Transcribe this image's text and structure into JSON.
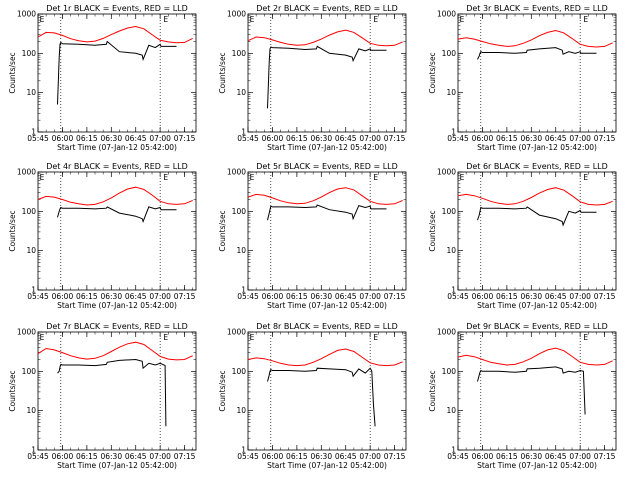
{
  "chart_data": {
    "type": "line",
    "layout": "3x3 grid",
    "y_scale": "log",
    "ylim": [
      1,
      1000
    ],
    "ylabel": "Counts/sec",
    "y_tick_labels": [
      "1",
      "10",
      "100",
      "1000"
    ],
    "x_tick_labels": [
      "05:45",
      "06:00",
      "06:15",
      "06:30",
      "06:45",
      "07:00",
      "07:15"
    ],
    "xlabel": "Start Time (07-Jan-12 05:42:00)",
    "xlim": [
      "05:45",
      "07:22"
    ],
    "vlines": [
      "05:59",
      "07:00"
    ],
    "marker_label": "E",
    "marker_positions": [
      "05:46",
      "07:02"
    ],
    "colors": {
      "events": "#000000",
      "lld": "#ff0000"
    },
    "series_legend": "BLACK = Events, RED = LLD",
    "panels": [
      {
        "title": "Det 1r BLACK = Events, RED = LLD",
        "lld": {
          "x": [
            "05:45",
            "05:50",
            "05:55",
            "06:00",
            "06:05",
            "06:10",
            "06:15",
            "06:20",
            "06:25",
            "06:30",
            "06:35",
            "06:40",
            "06:45",
            "06:50",
            "06:55",
            "07:00",
            "07:05",
            "07:10",
            "07:15",
            "07:20"
          ],
          "y": [
            260,
            340,
            330,
            285,
            235,
            210,
            195,
            205,
            240,
            300,
            370,
            440,
            480,
            420,
            300,
            215,
            195,
            185,
            190,
            240
          ]
        },
        "events": {
          "x": [
            "05:57",
            "05:58",
            "05:58.5",
            "05:59",
            "06:00",
            "06:10",
            "06:20",
            "06:27",
            "06:27.5",
            "06:35",
            "06:45",
            "06:49",
            "06:49.5",
            "06:53",
            "06:57",
            "07:00",
            "07:00.5",
            "07:10"
          ],
          "y": [
            5,
            80,
            170,
            190,
            175,
            170,
            160,
            170,
            200,
            110,
            100,
            90,
            70,
            160,
            140,
            170,
            150,
            150
          ]
        }
      },
      {
        "title": "Det 2r BLACK = Events, RED = LLD",
        "lld": {
          "x": [
            "05:45",
            "05:50",
            "05:55",
            "06:00",
            "06:05",
            "06:10",
            "06:15",
            "06:20",
            "06:25",
            "06:30",
            "06:35",
            "06:40",
            "06:45",
            "06:50",
            "06:55",
            "07:00",
            "07:05",
            "07:10",
            "07:15",
            "07:20"
          ],
          "y": [
            210,
            260,
            250,
            220,
            190,
            170,
            160,
            165,
            190,
            230,
            290,
            350,
            390,
            340,
            250,
            180,
            160,
            155,
            160,
            195
          ]
        },
        "events": {
          "x": [
            "05:57",
            "05:58",
            "05:58.5",
            "05:59",
            "06:00",
            "06:10",
            "06:20",
            "06:27",
            "06:27.5",
            "06:35",
            "06:45",
            "06:49",
            "06:49.5",
            "06:53",
            "06:57",
            "07:00",
            "07:00.5",
            "07:10"
          ],
          "y": [
            4,
            60,
            130,
            145,
            140,
            135,
            125,
            130,
            150,
            100,
            90,
            80,
            65,
            130,
            115,
            130,
            120,
            120
          ]
        }
      },
      {
        "title": "Det 3r BLACK = Events, RED = LLD",
        "lld": {
          "x": [
            "05:45",
            "05:50",
            "05:55",
            "06:00",
            "06:05",
            "06:10",
            "06:15",
            "06:20",
            "06:25",
            "06:30",
            "06:35",
            "06:40",
            "06:45",
            "06:50",
            "06:55",
            "07:00",
            "07:05",
            "07:10",
            "07:15",
            "07:20"
          ],
          "y": [
            230,
            250,
            230,
            200,
            175,
            160,
            150,
            155,
            180,
            220,
            280,
            340,
            380,
            330,
            240,
            170,
            150,
            145,
            150,
            185
          ]
        },
        "events": {
          "x": [
            "05:57",
            "05:58",
            "05:58.5",
            "05:59",
            "06:00",
            "06:10",
            "06:20",
            "06:27",
            "06:27.5",
            "06:35",
            "06:45",
            "06:49",
            "06:49.5",
            "06:53",
            "06:57",
            "07:00",
            "07:00.5",
            "07:10"
          ],
          "y": [
            70,
            85,
            100,
            110,
            105,
            105,
            100,
            105,
            120,
            130,
            140,
            120,
            95,
            110,
            100,
            110,
            100,
            100
          ]
        }
      },
      {
        "title": "Det 4r BLACK = Events, RED = LLD",
        "lld": {
          "x": [
            "05:45",
            "05:50",
            "05:55",
            "06:00",
            "06:05",
            "06:10",
            "06:15",
            "06:20",
            "06:25",
            "06:30",
            "06:35",
            "06:40",
            "06:45",
            "06:50",
            "06:55",
            "07:00",
            "07:05",
            "07:10",
            "07:15",
            "07:20"
          ],
          "y": [
            200,
            240,
            230,
            200,
            170,
            155,
            145,
            150,
            175,
            220,
            290,
            370,
            410,
            360,
            260,
            180,
            155,
            150,
            155,
            190
          ]
        },
        "events": {
          "x": [
            "05:57",
            "05:58",
            "05:58.5",
            "05:59",
            "06:00",
            "06:10",
            "06:20",
            "06:27",
            "06:27.5",
            "06:35",
            "06:45",
            "06:49",
            "06:49.5",
            "06:53",
            "06:57",
            "07:00",
            "07:00.5",
            "07:10"
          ],
          "y": [
            70,
            100,
            115,
            125,
            120,
            120,
            115,
            120,
            130,
            90,
            75,
            65,
            55,
            130,
            115,
            125,
            110,
            110
          ]
        }
      },
      {
        "title": "Det 5r BLACK = Events, RED = LLD",
        "lld": {
          "x": [
            "05:45",
            "05:50",
            "05:55",
            "06:00",
            "06:05",
            "06:10",
            "06:15",
            "06:20",
            "06:25",
            "06:30",
            "06:35",
            "06:40",
            "06:45",
            "06:50",
            "06:55",
            "07:00",
            "07:05",
            "07:10",
            "07:15",
            "07:20"
          ],
          "y": [
            230,
            270,
            255,
            220,
            185,
            165,
            155,
            160,
            185,
            230,
            300,
            370,
            400,
            350,
            250,
            180,
            155,
            150,
            155,
            190
          ]
        },
        "events": {
          "x": [
            "05:57",
            "05:58",
            "05:58.5",
            "05:59",
            "06:00",
            "06:10",
            "06:20",
            "06:27",
            "06:27.5",
            "06:35",
            "06:45",
            "06:49",
            "06:49.5",
            "06:53",
            "06:57",
            "07:00",
            "07:00.5",
            "07:10"
          ],
          "y": [
            60,
            90,
            110,
            135,
            130,
            130,
            125,
            130,
            145,
            110,
            95,
            85,
            65,
            140,
            125,
            135,
            115,
            115
          ]
        }
      },
      {
        "title": "Det 6r BLACK = Events, RED = LLD",
        "lld": {
          "x": [
            "05:45",
            "05:50",
            "05:55",
            "06:00",
            "06:05",
            "06:10",
            "06:15",
            "06:20",
            "06:25",
            "06:30",
            "06:35",
            "06:40",
            "06:45",
            "06:50",
            "06:55",
            "07:00",
            "07:05",
            "07:10",
            "07:15",
            "07:20"
          ],
          "y": [
            250,
            270,
            250,
            215,
            180,
            160,
            150,
            155,
            180,
            225,
            290,
            360,
            400,
            345,
            250,
            175,
            150,
            145,
            150,
            180
          ]
        },
        "events": {
          "x": [
            "05:57",
            "05:58",
            "05:58.5",
            "05:59",
            "06:00",
            "06:10",
            "06:20",
            "06:27",
            "06:27.5",
            "06:35",
            "06:45",
            "06:49",
            "06:49.5",
            "06:53",
            "06:57",
            "07:00",
            "07:00.5",
            "07:10"
          ],
          "y": [
            60,
            80,
            100,
            125,
            120,
            120,
            115,
            120,
            130,
            80,
            65,
            55,
            45,
            100,
            90,
            105,
            95,
            95
          ]
        }
      },
      {
        "title": "Det 7r BLACK = Events, RED = LLD",
        "lld": {
          "x": [
            "05:45",
            "05:50",
            "05:55",
            "06:00",
            "06:05",
            "06:10",
            "06:15",
            "06:20",
            "06:25",
            "06:30",
            "06:35",
            "06:40",
            "06:45",
            "06:50",
            "06:55",
            "07:00",
            "07:05",
            "07:10",
            "07:15",
            "07:20"
          ],
          "y": [
            280,
            380,
            350,
            300,
            250,
            220,
            205,
            215,
            250,
            320,
            410,
            500,
            550,
            480,
            340,
            240,
            205,
            195,
            200,
            250
          ]
        },
        "events": {
          "x": [
            "05:57",
            "05:58",
            "05:58.5",
            "05:59",
            "06:00",
            "06:10",
            "06:20",
            "06:27",
            "06:27.5",
            "06:35",
            "06:45",
            "06:49",
            "06:49.5",
            "06:53",
            "06:57",
            "07:00",
            "07:03",
            "07:03.5"
          ],
          "y": [
            90,
            100,
            130,
            150,
            145,
            145,
            140,
            150,
            170,
            190,
            200,
            180,
            120,
            160,
            145,
            160,
            140,
            4
          ]
        }
      },
      {
        "title": "Det 8r BLACK = Events, RED = LLD",
        "lld": {
          "x": [
            "05:45",
            "05:50",
            "05:55",
            "06:00",
            "06:05",
            "06:10",
            "06:15",
            "06:20",
            "06:25",
            "06:30",
            "06:35",
            "06:40",
            "06:45",
            "06:50",
            "06:55",
            "07:00",
            "07:05",
            "07:10",
            "07:15",
            "07:20"
          ],
          "y": [
            200,
            220,
            210,
            185,
            160,
            145,
            140,
            145,
            170,
            210,
            270,
            340,
            370,
            320,
            230,
            165,
            145,
            140,
            145,
            175
          ]
        },
        "events": {
          "x": [
            "05:57",
            "05:58",
            "05:58.5",
            "05:59",
            "06:00",
            "06:10",
            "06:20",
            "06:27",
            "06:27.5",
            "06:35",
            "06:45",
            "06:49",
            "06:49.5",
            "06:53",
            "06:57",
            "07:00",
            "07:01",
            "07:02",
            "07:03"
          ],
          "y": [
            55,
            80,
            100,
            110,
            105,
            105,
            100,
            105,
            120,
            115,
            110,
            95,
            75,
            115,
            90,
            120,
            100,
            15,
            4
          ]
        }
      },
      {
        "title": "Det 9r BLACK = Events, RED = LLD",
        "lld": {
          "x": [
            "05:45",
            "05:50",
            "05:55",
            "06:00",
            "06:05",
            "06:10",
            "06:15",
            "06:20",
            "06:25",
            "06:30",
            "06:35",
            "06:40",
            "06:45",
            "06:50",
            "06:55",
            "07:00",
            "07:05",
            "07:10",
            "07:15",
            "07:20"
          ],
          "y": [
            230,
            255,
            235,
            200,
            170,
            155,
            145,
            150,
            175,
            215,
            280,
            350,
            390,
            335,
            240,
            170,
            150,
            145,
            150,
            185
          ]
        },
        "events": {
          "x": [
            "05:57",
            "05:58",
            "05:58.5",
            "05:59",
            "06:00",
            "06:10",
            "06:20",
            "06:27",
            "06:27.5",
            "06:35",
            "06:45",
            "06:49",
            "06:49.5",
            "06:53",
            "06:57",
            "07:00",
            "07:02",
            "07:03"
          ],
          "y": [
            55,
            80,
            95,
            105,
            100,
            100,
            95,
            100,
            115,
            120,
            130,
            115,
            90,
            100,
            95,
            105,
            100,
            8
          ]
        }
      }
    ]
  }
}
